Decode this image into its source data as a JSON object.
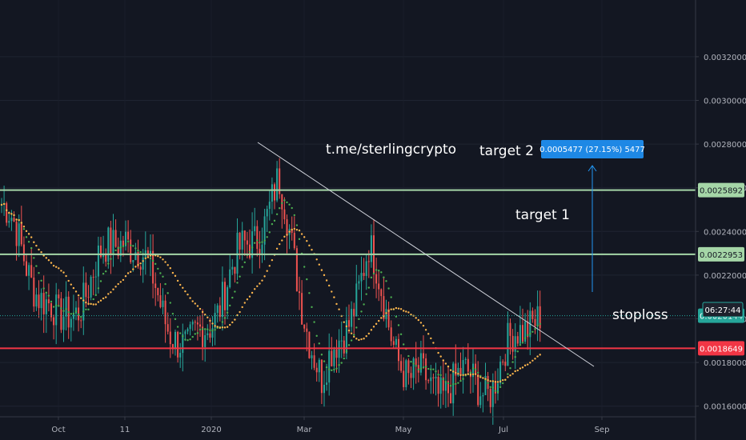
{
  "chart_data": {
    "type": "candlestick",
    "x_ticks": [
      "Oct",
      "11",
      "2020",
      "Mar",
      "May",
      "Jul",
      "Sep"
    ],
    "y_ticks": [
      "0.0032000",
      "0.0030000",
      "0.0028000",
      "0.0026000",
      "0.0024000",
      "0.0022000",
      "0.0020000",
      "0.0018000",
      "0.0016000"
    ],
    "y_tick_values": [
      0.0032,
      0.003,
      0.0028,
      0.0026,
      0.0024,
      0.0022,
      0.002,
      0.0018,
      0.0016
    ],
    "ylim": [
      0.00147,
      0.00335
    ],
    "horizontal_levels": [
      {
        "label": "0.0025892",
        "value": 0.0025892,
        "color": "#a5d6a7"
      },
      {
        "label": "0.0022953",
        "value": 0.0022953,
        "color": "#a5d6a7"
      },
      {
        "label": "0.0020144",
        "value": 0.0020144,
        "color": "#26a69a"
      },
      {
        "label": "0.0018649",
        "value": 0.0018649,
        "color": "#f23645"
      }
    ],
    "countdown": "06:27:44",
    "measure_label": "0.0005477 (27.15%) 5477",
    "annotations": {
      "channel": "t.me/sterlingcrypto",
      "target2": "target 2",
      "target1": "target 1",
      "stoploss": "stoploss"
    },
    "key_points": [
      {
        "x": "2019-08-15",
        "y": 0.0027
      },
      {
        "x": "2019-10-01",
        "y": 0.00195
      },
      {
        "x": "2019-11-11",
        "y": 0.00242
      },
      {
        "x": "2019-12-20",
        "y": 0.00182
      },
      {
        "x": "2020-02-14",
        "y": 0.0026
      },
      {
        "x": "2020-03-12",
        "y": 0.00168
      },
      {
        "x": "2020-04-10",
        "y": 0.00229
      },
      {
        "x": "2020-05-05",
        "y": 0.0017
      },
      {
        "x": "2020-06-25",
        "y": 0.00171
      },
      {
        "x": "2020-07-20",
        "y": 0.00204
      }
    ],
    "colors": {
      "up": "#26a69a",
      "down": "#ef5350",
      "ma_fast": "#4caf50",
      "ma_slow": "#ffb74d",
      "trendline": "#d1d4dc",
      "measure_arrow": "#2196f3"
    }
  }
}
